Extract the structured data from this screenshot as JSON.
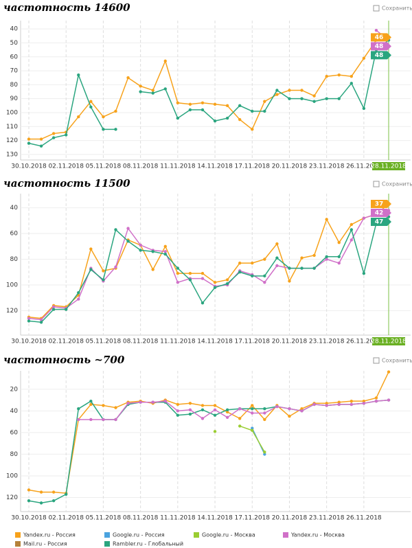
{
  "chart_data": [
    {
      "type": "line",
      "title": "частотность 14600",
      "save_label": "Сохранить",
      "reversed": true,
      "grid": true,
      "end_tags": true,
      "marker_line": true,
      "categories": [
        "30.10.2018",
        null,
        null,
        "02.11.2018",
        null,
        null,
        "05.11.2018",
        null,
        null,
        "08.11.2018",
        null,
        null,
        "11.11.2018",
        null,
        null,
        "14.11.2018",
        null,
        null,
        "17.11.2018",
        null,
        null,
        "20.11.2018",
        null,
        null,
        "23.11.2018",
        null,
        null,
        "26.11.2018",
        null,
        "28.11.2018"
      ],
      "ylim": [
        34,
        134
      ],
      "yticks": [
        40,
        50,
        60,
        70,
        80,
        90,
        100,
        110,
        120,
        130
      ],
      "series": [
        {
          "name": "Yandex.ru - Россия",
          "color": "#f7a21b",
          "values": [
            119,
            119,
            115,
            114,
            103,
            92,
            103,
            99,
            75,
            81,
            84,
            63,
            93,
            94,
            93,
            94,
            95,
            105,
            112,
            92,
            87,
            84,
            84,
            88,
            74,
            73,
            74,
            61,
            48,
            46
          ]
        },
        {
          "name": "Yandex.ru - Москва",
          "color": "#d070c8",
          "values": [
            null,
            null,
            null,
            null,
            null,
            null,
            null,
            null,
            null,
            null,
            null,
            null,
            null,
            null,
            null,
            null,
            null,
            null,
            null,
            null,
            null,
            null,
            null,
            null,
            null,
            null,
            null,
            null,
            41,
            48
          ]
        },
        {
          "name": "Rambler.ru - Глобальный",
          "color": "#2aa57f",
          "values": [
            122,
            124,
            118,
            116,
            73,
            96,
            112,
            112,
            null,
            85,
            86,
            83,
            104,
            98,
            98,
            106,
            104,
            95,
            99,
            99,
            84,
            90,
            90,
            92,
            90,
            90,
            79,
            97,
            55,
            48
          ]
        }
      ]
    },
    {
      "type": "line",
      "title": "частотность 11500",
      "save_label": "Сохранить",
      "reversed": true,
      "grid": true,
      "end_tags": true,
      "marker_line": true,
      "categories": [
        "30.10.2018",
        null,
        null,
        "02.11.2018",
        null,
        null,
        "05.11.2018",
        null,
        null,
        "08.11.2018",
        null,
        null,
        "11.11.2018",
        null,
        null,
        "14.11.2018",
        null,
        null,
        "17.11.2018",
        null,
        null,
        "20.11.2018",
        null,
        null,
        "23.11.2018",
        null,
        null,
        "26.11.2018",
        null,
        "28.11.2018"
      ],
      "ylim": [
        29,
        139
      ],
      "yticks": [
        40,
        60,
        80,
        100,
        120
      ],
      "series": [
        {
          "name": "Yandex.ru - Россия",
          "color": "#f7a21b",
          "values": [
            125,
            126,
            116,
            117,
            108,
            72,
            89,
            87,
            65,
            69,
            88,
            70,
            91,
            91,
            91,
            98,
            96,
            83,
            83,
            80,
            68,
            97,
            79,
            77,
            49,
            67,
            53,
            48,
            45,
            37
          ]
        },
        {
          "name": "Yandex.ru - Москва",
          "color": "#d070c8",
          "values": [
            126,
            127,
            117,
            118,
            111,
            87,
            97,
            86,
            56,
            69,
            73,
            74,
            98,
            95,
            95,
            101,
            100,
            89,
            92,
            98,
            85,
            87,
            87,
            87,
            80,
            83,
            65,
            48,
            45,
            42
          ]
        },
        {
          "name": "Rambler.ru - Глобальный",
          "color": "#2aa57f",
          "values": [
            128,
            129,
            119,
            119,
            106,
            88,
            96,
            57,
            66,
            73,
            74,
            76,
            87,
            96,
            114,
            102,
            99,
            90,
            93,
            93,
            79,
            87,
            87,
            87,
            78,
            78,
            57,
            91,
            52,
            47
          ]
        }
      ]
    },
    {
      "type": "line",
      "title": "частотность ~700",
      "save_label": "Сохранить",
      "reversed": true,
      "grid": true,
      "end_tags": false,
      "marker_line": false,
      "categories": [
        "30.10.2018",
        null,
        null,
        "02.11.2018",
        null,
        null,
        "05.11.2018",
        null,
        null,
        "08.11.2018",
        null,
        null,
        "11.11.2018",
        null,
        null,
        "14.11.2018",
        null,
        null,
        "17.11.2018",
        null,
        null,
        "20.11.2018",
        null,
        null,
        "23.11.2018",
        null,
        null,
        "26.11.2018",
        null,
        null
      ],
      "ylim": [
        3,
        133
      ],
      "yticks": [
        20,
        40,
        60,
        80,
        100,
        120
      ],
      "series": [
        {
          "name": "Yandex.ru - Россия",
          "color": "#f7a21b",
          "values": [
            113,
            115,
            115,
            116,
            48,
            34,
            35,
            37,
            32,
            31,
            33,
            30,
            34,
            33,
            35,
            35,
            41,
            47,
            35,
            48,
            35,
            45,
            38,
            33,
            33,
            32,
            31,
            31,
            28,
            4
          ]
        },
        {
          "name": "Mail.ru - Россия",
          "color": "#b5823a",
          "values": [
            null,
            null,
            null,
            null,
            null,
            null,
            null,
            null,
            null,
            null,
            null,
            null,
            null,
            null,
            null,
            null,
            null,
            null,
            null,
            null,
            null,
            null,
            null,
            null,
            null,
            null,
            null,
            null,
            null,
            null
          ]
        },
        {
          "name": "Google.ru - Россия",
          "color": "#4aa3df",
          "values": [
            null,
            null,
            null,
            null,
            null,
            null,
            null,
            null,
            null,
            null,
            null,
            null,
            null,
            null,
            null,
            null,
            null,
            null,
            56,
            80,
            null,
            null,
            null,
            null,
            null,
            null,
            null,
            null,
            null,
            null
          ]
        },
        {
          "name": "Rambler.ru - Глобальный",
          "color": "#2aa57f",
          "values": [
            123,
            125,
            123,
            117,
            38,
            31,
            48,
            48,
            34,
            32,
            32,
            32,
            44,
            43,
            39,
            44,
            39,
            38,
            38,
            38,
            36,
            38,
            40,
            34,
            35,
            34,
            34,
            33,
            31,
            30
          ]
        },
        {
          "name": "Google.ru - Москва",
          "color": "#9acd32",
          "values": [
            null,
            null,
            null,
            null,
            null,
            null,
            null,
            null,
            null,
            null,
            null,
            null,
            null,
            null,
            null,
            59,
            null,
            54,
            58,
            78,
            null,
            null,
            null,
            null,
            null,
            null,
            null,
            null,
            null,
            null
          ]
        },
        {
          "name": "Yandex.ru - Москва",
          "color": "#d070c8",
          "values": [
            null,
            null,
            null,
            null,
            48,
            48,
            48,
            48,
            33,
            32,
            32,
            31,
            40,
            39,
            47,
            39,
            46,
            38,
            42,
            42,
            36,
            38,
            40,
            34,
            35,
            34,
            34,
            33,
            31,
            30
          ]
        }
      ]
    }
  ]
}
